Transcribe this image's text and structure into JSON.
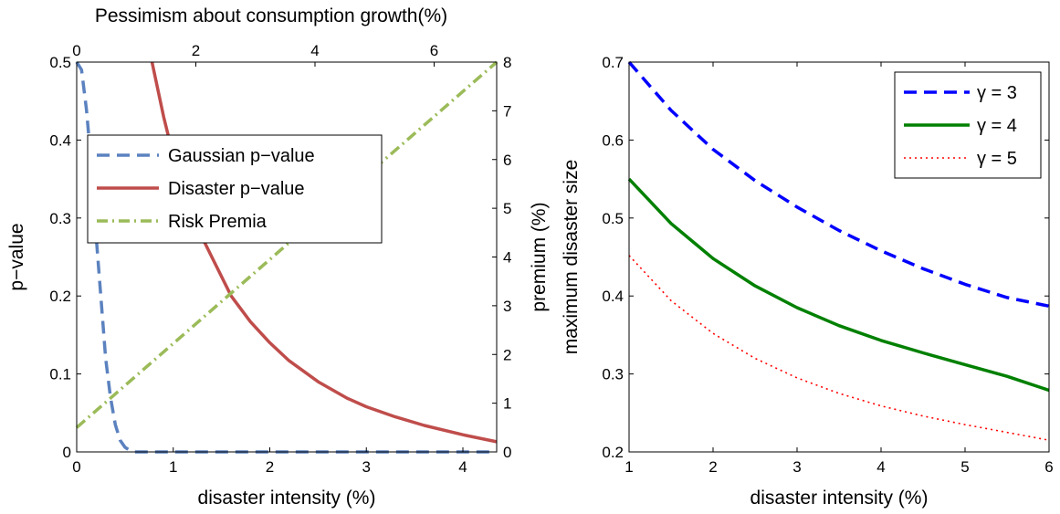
{
  "chart_data": [
    {
      "type": "line",
      "xlabel": "disaster intensity (%)",
      "ylabel": "p−value",
      "x2label": "Pessimism about consumption growth(%)",
      "y2label": "premium (%)",
      "xlim": [
        0,
        4.35
      ],
      "ylim": [
        0,
        0.5
      ],
      "x2lim": [
        0,
        7.05
      ],
      "y2lim": [
        0,
        8
      ],
      "xticks": [
        "0",
        "1",
        "2",
        "3",
        "4"
      ],
      "yticks": [
        "0",
        "0.1",
        "0.2",
        "0.3",
        "0.4",
        "0.5"
      ],
      "x2ticks": [
        "0",
        "2",
        "4",
        "6"
      ],
      "y2ticks": [
        "0",
        "1",
        "2",
        "3",
        "4",
        "5",
        "6",
        "7",
        "8"
      ],
      "legend": {
        "placement": "upper-left"
      },
      "series": [
        {
          "name": "Gaussian p−value",
          "color": "#5b82bf",
          "style": "dashed",
          "axis": "left",
          "x": [
            0,
            0.05,
            0.1,
            0.15,
            0.2,
            0.25,
            0.3,
            0.35,
            0.4,
            0.45,
            0.5,
            0.55,
            0.6,
            0.7,
            1,
            2,
            3,
            4,
            4.35
          ],
          "y": [
            0.5,
            0.49,
            0.44,
            0.37,
            0.28,
            0.2,
            0.12,
            0.07,
            0.035,
            0.015,
            0.006,
            0.002,
            0.0,
            0.0,
            0.0,
            0.0,
            0.0,
            0.0,
            0.0
          ]
        },
        {
          "name": "Disaster p−value",
          "color": "#bf4d4b",
          "style": "solid",
          "axis": "left",
          "x": [
            0.78,
            0.9,
            1.0,
            1.2,
            1.4,
            1.6,
            1.8,
            2.0,
            2.2,
            2.5,
            2.8,
            3.0,
            3.3,
            3.6,
            4.0,
            4.35
          ],
          "y": [
            0.5,
            0.43,
            0.38,
            0.3,
            0.25,
            0.2,
            0.167,
            0.14,
            0.117,
            0.09,
            0.069,
            0.058,
            0.045,
            0.034,
            0.022,
            0.013
          ]
        },
        {
          "name": "Risk Premia",
          "color": "#9bbb59",
          "style": "dashdot",
          "axis": "right",
          "x": [
            0,
            4.35
          ],
          "y": [
            0.5,
            8.0
          ]
        }
      ]
    },
    {
      "type": "line",
      "xlabel": "disaster intensity (%)",
      "ylabel": "maximum disaster size",
      "xlim": [
        1,
        6
      ],
      "ylim": [
        0.2,
        0.7
      ],
      "xticks": [
        "1",
        "2",
        "3",
        "4",
        "5",
        "6"
      ],
      "yticks": [
        "0.2",
        "0.3",
        "0.4",
        "0.5",
        "0.6",
        "0.7"
      ],
      "legend": {
        "placement": "top-right"
      },
      "series": [
        {
          "name": "γ = 3",
          "color": "#0000ff",
          "style": "dashed",
          "x": [
            1,
            1.5,
            2,
            2.5,
            3,
            3.5,
            4,
            4.5,
            5,
            5.5,
            6
          ],
          "y": [
            0.7,
            0.638,
            0.588,
            0.548,
            0.514,
            0.484,
            0.458,
            0.435,
            0.415,
            0.398,
            0.387
          ]
        },
        {
          "name": "γ = 4",
          "color": "#008000",
          "style": "solid",
          "x": [
            1,
            1.5,
            2,
            2.5,
            3,
            3.5,
            4,
            4.5,
            5,
            5.5,
            6
          ],
          "y": [
            0.55,
            0.493,
            0.448,
            0.413,
            0.385,
            0.362,
            0.343,
            0.327,
            0.312,
            0.297,
            0.279
          ]
        },
        {
          "name": "γ = 5",
          "color": "#ff0000",
          "style": "dotted",
          "x": [
            1,
            1.5,
            2,
            2.5,
            3,
            3.5,
            4,
            4.5,
            5,
            5.5,
            6
          ],
          "y": [
            0.452,
            0.394,
            0.352,
            0.32,
            0.295,
            0.275,
            0.259,
            0.246,
            0.235,
            0.225,
            0.215
          ]
        }
      ]
    }
  ]
}
